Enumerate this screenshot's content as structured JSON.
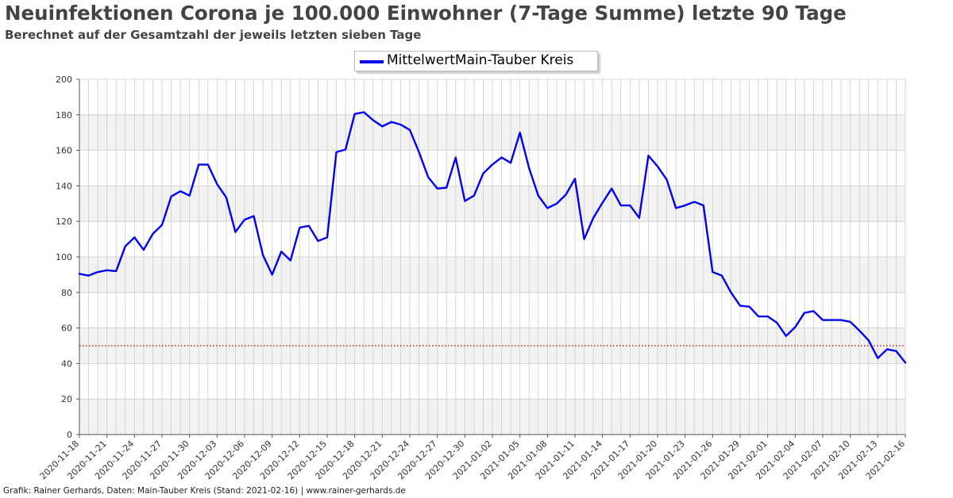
{
  "title": "Neuinfektionen Corona je 100.000 Einwohner (7-Tage Summe) letzte 90 Tage",
  "subtitle": "Berechnet auf der Gesamtzahl der jeweils letzten sieben Tage",
  "credit": "Grafik: Rainer Gerhards, Daten: Main-Tauber Kreis (Stand: 2021-02-16) | www.rainer-gerhards.de",
  "colors": {
    "series": "#0000ee",
    "threshold": "#b00000",
    "band": "#f2f2f2",
    "grid": "#cccccc",
    "axis": "#555555",
    "text": "#444444"
  },
  "chart_data": {
    "type": "line",
    "title": "Neuinfektionen Corona je 100.000 Einwohner (7-Tage Summe) letzte 90 Tage",
    "subtitle": "Berechnet auf der Gesamtzahl der jeweils letzten sieben Tage",
    "xlabel": "",
    "ylabel": "",
    "ylim": [
      0,
      200
    ],
    "yticks": [
      0,
      20,
      40,
      60,
      80,
      100,
      120,
      140,
      160,
      180,
      200
    ],
    "x_start": "2020-11-18",
    "x_end": "2021-02-16",
    "xtick_labels": [
      "2020-11-18",
      "2020-11-21",
      "2020-11-24",
      "2020-11-27",
      "2020-11-30",
      "2020-12-03",
      "2020-12-06",
      "2020-12-09",
      "2020-12-12",
      "2020-12-15",
      "2020-12-18",
      "2020-12-21",
      "2020-12-24",
      "2020-12-27",
      "2020-12-30",
      "2021-01-02",
      "2021-01-05",
      "2021-01-08",
      "2021-01-11",
      "2021-01-14",
      "2021-01-17",
      "2021-01-20",
      "2021-01-23",
      "2021-01-26",
      "2021-01-29",
      "2021-02-01",
      "2021-02-04",
      "2021-02-07",
      "2021-02-10",
      "2021-02-13",
      "2021-02-16"
    ],
    "grid": true,
    "legend_position": "top-center",
    "threshold": {
      "value": 50,
      "style": "dotted"
    },
    "series": [
      {
        "name": "MittelwertMain-Tauber Kreis",
        "values": [
          90.5,
          89.5,
          91.5,
          92.5,
          92,
          106,
          111,
          104,
          113,
          118,
          134,
          137,
          134.5,
          152,
          152,
          141,
          133.5,
          114,
          121,
          123,
          101,
          90,
          103,
          98,
          116.5,
          117.5,
          109,
          111,
          159,
          160.5,
          180.5,
          181.5,
          177,
          173.5,
          176,
          174.5,
          171.5,
          159,
          145,
          138.5,
          139,
          156,
          131.5,
          134.5,
          147,
          152,
          156,
          153,
          170,
          150,
          134.5,
          127.5,
          130,
          135,
          144,
          110,
          122,
          130.5,
          138.5,
          129,
          129,
          122,
          157,
          151,
          143.5,
          127.5,
          129,
          131,
          129,
          91.5,
          89.5,
          80,
          72.5,
          72,
          66.5,
          66.5,
          63,
          55.5,
          60.5,
          68.5,
          69.5,
          64.5,
          64.5,
          64.5,
          63.5,
          58.5,
          53,
          43,
          48,
          47,
          40.5
        ]
      }
    ]
  }
}
